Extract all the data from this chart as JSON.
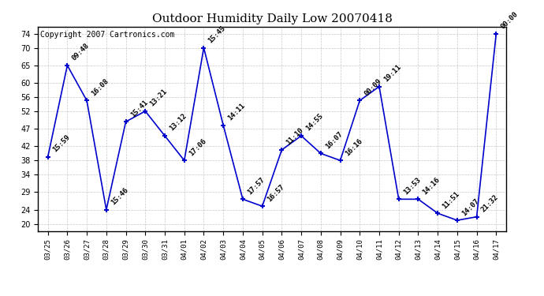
{
  "title": "Outdoor Humidity Daily Low 20070418",
  "copyright": "Copyright 2007 Cartronics.com",
  "x_labels": [
    "03/25",
    "03/26",
    "03/27",
    "03/28",
    "03/29",
    "03/30",
    "03/31",
    "04/01",
    "04/02",
    "04/03",
    "04/04",
    "04/05",
    "04/06",
    "04/07",
    "04/08",
    "04/09",
    "04/10",
    "04/11",
    "04/12",
    "04/13",
    "04/14",
    "04/15",
    "04/16",
    "04/17"
  ],
  "y_values": [
    39,
    65,
    55,
    24,
    49,
    52,
    45,
    38,
    70,
    48,
    27,
    25,
    41,
    45,
    40,
    38,
    55,
    59,
    27,
    27,
    23,
    21,
    22,
    74
  ],
  "annotations": [
    "15:59",
    "09:48",
    "16:08",
    "15:46",
    "15:41",
    "13:21",
    "13:12",
    "17:06",
    "15:45",
    "14:11",
    "17:57",
    "16:57",
    "11:10",
    "14:55",
    "16:07",
    "16:16",
    "00:09",
    "19:11",
    "13:53",
    "14:16",
    "11:51",
    "14:07",
    "21:32",
    "00:00"
  ],
  "line_color": "#0000cc",
  "marker_color": "#0000cc",
  "bg_color": "#ffffff",
  "grid_color": "#bbbbbb",
  "ylim": [
    18,
    76
  ],
  "yticks": [
    20,
    24,
    29,
    34,
    38,
    42,
    47,
    52,
    56,
    60,
    65,
    70,
    74
  ],
  "title_fontsize": 11,
  "annotation_fontsize": 6.5,
  "copyright_fontsize": 7
}
